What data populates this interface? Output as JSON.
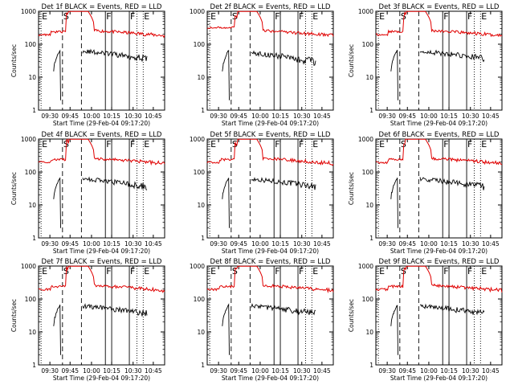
{
  "chart_data": [
    {
      "type": "line",
      "title": "Det 1f BLACK = Events, RED = LLD",
      "xlabel": "Start Time (29-Feb-04 09:17:20)",
      "ylabel": "Counts/sec",
      "yscale": "log",
      "ylim": [
        1,
        1000
      ],
      "xticks": [
        "09:30",
        "09:45",
        "10:00",
        "10:15",
        "10:30",
        "10:45"
      ],
      "yticks": [
        "1",
        "10",
        "100",
        "1000"
      ],
      "markers": [
        {
          "label": "E",
          "style": "dotted"
        },
        {
          "label": "S",
          "style": "dashed"
        },
        {
          "label": "",
          "style": "dashed"
        },
        {
          "label": "F",
          "style": "solid"
        },
        {
          "label": "",
          "style": "solid"
        },
        {
          "label": "F",
          "style": "solid"
        },
        {
          "label": "",
          "style": "dotted"
        },
        {
          "label": "E",
          "style": "dotted"
        }
      ],
      "series": [
        {
          "color": "red"
        },
        {
          "color": "black"
        }
      ]
    },
    {
      "type": "line",
      "title": "Det 2f BLACK = Events, RED = LLD",
      "xlabel": "Start Time (29-Feb-04 09:17:20)",
      "ylabel": "",
      "yscale": "log",
      "ylim": [
        1,
        1000
      ],
      "xticks": [
        "09:30",
        "09:45",
        "10:00",
        "10:15",
        "10:30",
        "10:45"
      ],
      "yticks": [
        "1",
        "10",
        "100",
        "1000"
      ],
      "markers": [
        {
          "label": "E",
          "style": "dotted"
        },
        {
          "label": "S",
          "style": "dashed"
        },
        {
          "label": "",
          "style": "dashed"
        },
        {
          "label": "F",
          "style": "solid"
        },
        {
          "label": "",
          "style": "solid"
        },
        {
          "label": "F",
          "style": "solid"
        },
        {
          "label": "",
          "style": "dotted"
        },
        {
          "label": "E",
          "style": "dotted"
        }
      ],
      "series": [
        {
          "color": "red"
        },
        {
          "color": "black"
        }
      ]
    },
    {
      "type": "line",
      "title": "Det 3f BLACK = Events, RED = LLD",
      "xlabel": "Start Time (29-Feb-04 09:17:20)",
      "ylabel": "Counts/sec",
      "yscale": "log",
      "ylim": [
        1,
        1000
      ],
      "xticks": [
        "09:30",
        "09:45",
        "10:00",
        "10:15",
        "10:30",
        "10:45"
      ],
      "yticks": [
        "1",
        "10",
        "100",
        "1000"
      ],
      "markers": [
        {
          "label": "E",
          "style": "dotted"
        },
        {
          "label": "S",
          "style": "dashed"
        },
        {
          "label": "",
          "style": "dashed"
        },
        {
          "label": "F",
          "style": "solid"
        },
        {
          "label": "",
          "style": "solid"
        },
        {
          "label": "F",
          "style": "solid"
        },
        {
          "label": "",
          "style": "dotted"
        },
        {
          "label": "E",
          "style": "dotted"
        }
      ],
      "series": [
        {
          "color": "red"
        },
        {
          "color": "black"
        }
      ]
    },
    {
      "type": "line",
      "title": "Det 4f BLACK = Events, RED = LLD",
      "xlabel": "Start Time (29-Feb-04 09:17:20)",
      "ylabel": "Counts/sec",
      "yscale": "log",
      "ylim": [
        1,
        1000
      ],
      "xticks": [
        "09:30",
        "09:45",
        "10:00",
        "10:15",
        "10:30",
        "10:45"
      ],
      "yticks": [
        "1",
        "10",
        "100",
        "1000"
      ],
      "markers": [
        {
          "label": "E",
          "style": "dotted"
        },
        {
          "label": "S",
          "style": "dashed"
        },
        {
          "label": "",
          "style": "dashed"
        },
        {
          "label": "F",
          "style": "solid"
        },
        {
          "label": "",
          "style": "solid"
        },
        {
          "label": "F",
          "style": "solid"
        },
        {
          "label": "",
          "style": "dotted"
        },
        {
          "label": "E",
          "style": "dotted"
        }
      ],
      "series": [
        {
          "color": "red"
        },
        {
          "color": "black"
        }
      ]
    },
    {
      "type": "line",
      "title": "Det 5f BLACK = Events, RED = LLD",
      "xlabel": "Start Time (29-Feb-04 09:17:20)",
      "ylabel": "",
      "yscale": "log",
      "ylim": [
        1,
        1000
      ],
      "xticks": [
        "09:30",
        "09:45",
        "10:00",
        "10:15",
        "10:30",
        "10:45"
      ],
      "yticks": [
        "1",
        "10",
        "100",
        "1000"
      ],
      "markers": [
        {
          "label": "E",
          "style": "dotted"
        },
        {
          "label": "S",
          "style": "dashed"
        },
        {
          "label": "",
          "style": "dashed"
        },
        {
          "label": "F",
          "style": "solid"
        },
        {
          "label": "",
          "style": "solid"
        },
        {
          "label": "F",
          "style": "solid"
        },
        {
          "label": "",
          "style": "dotted"
        },
        {
          "label": "E",
          "style": "dotted"
        }
      ],
      "series": [
        {
          "color": "red"
        },
        {
          "color": "black"
        }
      ]
    },
    {
      "type": "line",
      "title": "Det 6f BLACK = Events, RED = LLD",
      "xlabel": "Start Time (29-Feb-04 09:17:20)",
      "ylabel": "Counts/sec",
      "yscale": "log",
      "ylim": [
        1,
        1000
      ],
      "xticks": [
        "09:30",
        "09:45",
        "10:00",
        "10:15",
        "10:30",
        "10:45"
      ],
      "yticks": [
        "1",
        "10",
        "100",
        "1000"
      ],
      "markers": [
        {
          "label": "E",
          "style": "dotted"
        },
        {
          "label": "S",
          "style": "dashed"
        },
        {
          "label": "",
          "style": "dashed"
        },
        {
          "label": "F",
          "style": "solid"
        },
        {
          "label": "",
          "style": "solid"
        },
        {
          "label": "F",
          "style": "solid"
        },
        {
          "label": "",
          "style": "dotted"
        },
        {
          "label": "E",
          "style": "dotted"
        }
      ],
      "series": [
        {
          "color": "red"
        },
        {
          "color": "black"
        }
      ]
    },
    {
      "type": "line",
      "title": "Det 7f BLACK = Events, RED = LLD",
      "xlabel": "Start Time (29-Feb-04 09:17:20)",
      "ylabel": "Counts/sec",
      "yscale": "log",
      "ylim": [
        1,
        1000
      ],
      "xticks": [
        "09:30",
        "09:45",
        "10:00",
        "10:15",
        "10:30",
        "10:45"
      ],
      "yticks": [
        "1",
        "10",
        "100",
        "1000"
      ],
      "markers": [
        {
          "label": "E",
          "style": "dotted"
        },
        {
          "label": "S",
          "style": "dashed"
        },
        {
          "label": "",
          "style": "dashed"
        },
        {
          "label": "F",
          "style": "solid"
        },
        {
          "label": "",
          "style": "solid"
        },
        {
          "label": "F",
          "style": "solid"
        },
        {
          "label": "",
          "style": "dotted"
        },
        {
          "label": "E",
          "style": "dotted"
        }
      ],
      "series": [
        {
          "color": "red"
        },
        {
          "color": "black"
        }
      ]
    },
    {
      "type": "line",
      "title": "Det 8f BLACK = Events, RED = LLD",
      "xlabel": "Start Time (29-Feb-04 09:17:20)",
      "ylabel": "",
      "yscale": "log",
      "ylim": [
        1,
        1000
      ],
      "xticks": [
        "09:30",
        "09:45",
        "10:00",
        "10:15",
        "10:30",
        "10:45"
      ],
      "yticks": [
        "1",
        "10",
        "100",
        "1000"
      ],
      "markers": [
        {
          "label": "E",
          "style": "dotted"
        },
        {
          "label": "S",
          "style": "dashed"
        },
        {
          "label": "",
          "style": "dashed"
        },
        {
          "label": "F",
          "style": "solid"
        },
        {
          "label": "",
          "style": "solid"
        },
        {
          "label": "F",
          "style": "solid"
        },
        {
          "label": "",
          "style": "dotted"
        },
        {
          "label": "E",
          "style": "dotted"
        }
      ],
      "series": [
        {
          "color": "red"
        },
        {
          "color": "black"
        }
      ]
    },
    {
      "type": "line",
      "title": "Det 9f BLACK = Events, RED = LLD",
      "xlabel": "Start Time (29-Feb-04 09:17:20)",
      "ylabel": "Counts/sec",
      "yscale": "log",
      "ylim": [
        1,
        1000
      ],
      "xticks": [
        "09:30",
        "09:45",
        "10:00",
        "10:15",
        "10:30",
        "10:45"
      ],
      "yticks": [
        "1",
        "10",
        "100",
        "1000"
      ],
      "markers": [
        {
          "label": "E",
          "style": "dotted"
        },
        {
          "label": "S",
          "style": "dashed"
        },
        {
          "label": "",
          "style": "dashed"
        },
        {
          "label": "F",
          "style": "solid"
        },
        {
          "label": "",
          "style": "solid"
        },
        {
          "label": "F",
          "style": "solid"
        },
        {
          "label": "",
          "style": "dotted"
        },
        {
          "label": "E",
          "style": "dotted"
        }
      ],
      "series": [
        {
          "color": "red"
        },
        {
          "color": "black"
        }
      ]
    }
  ]
}
